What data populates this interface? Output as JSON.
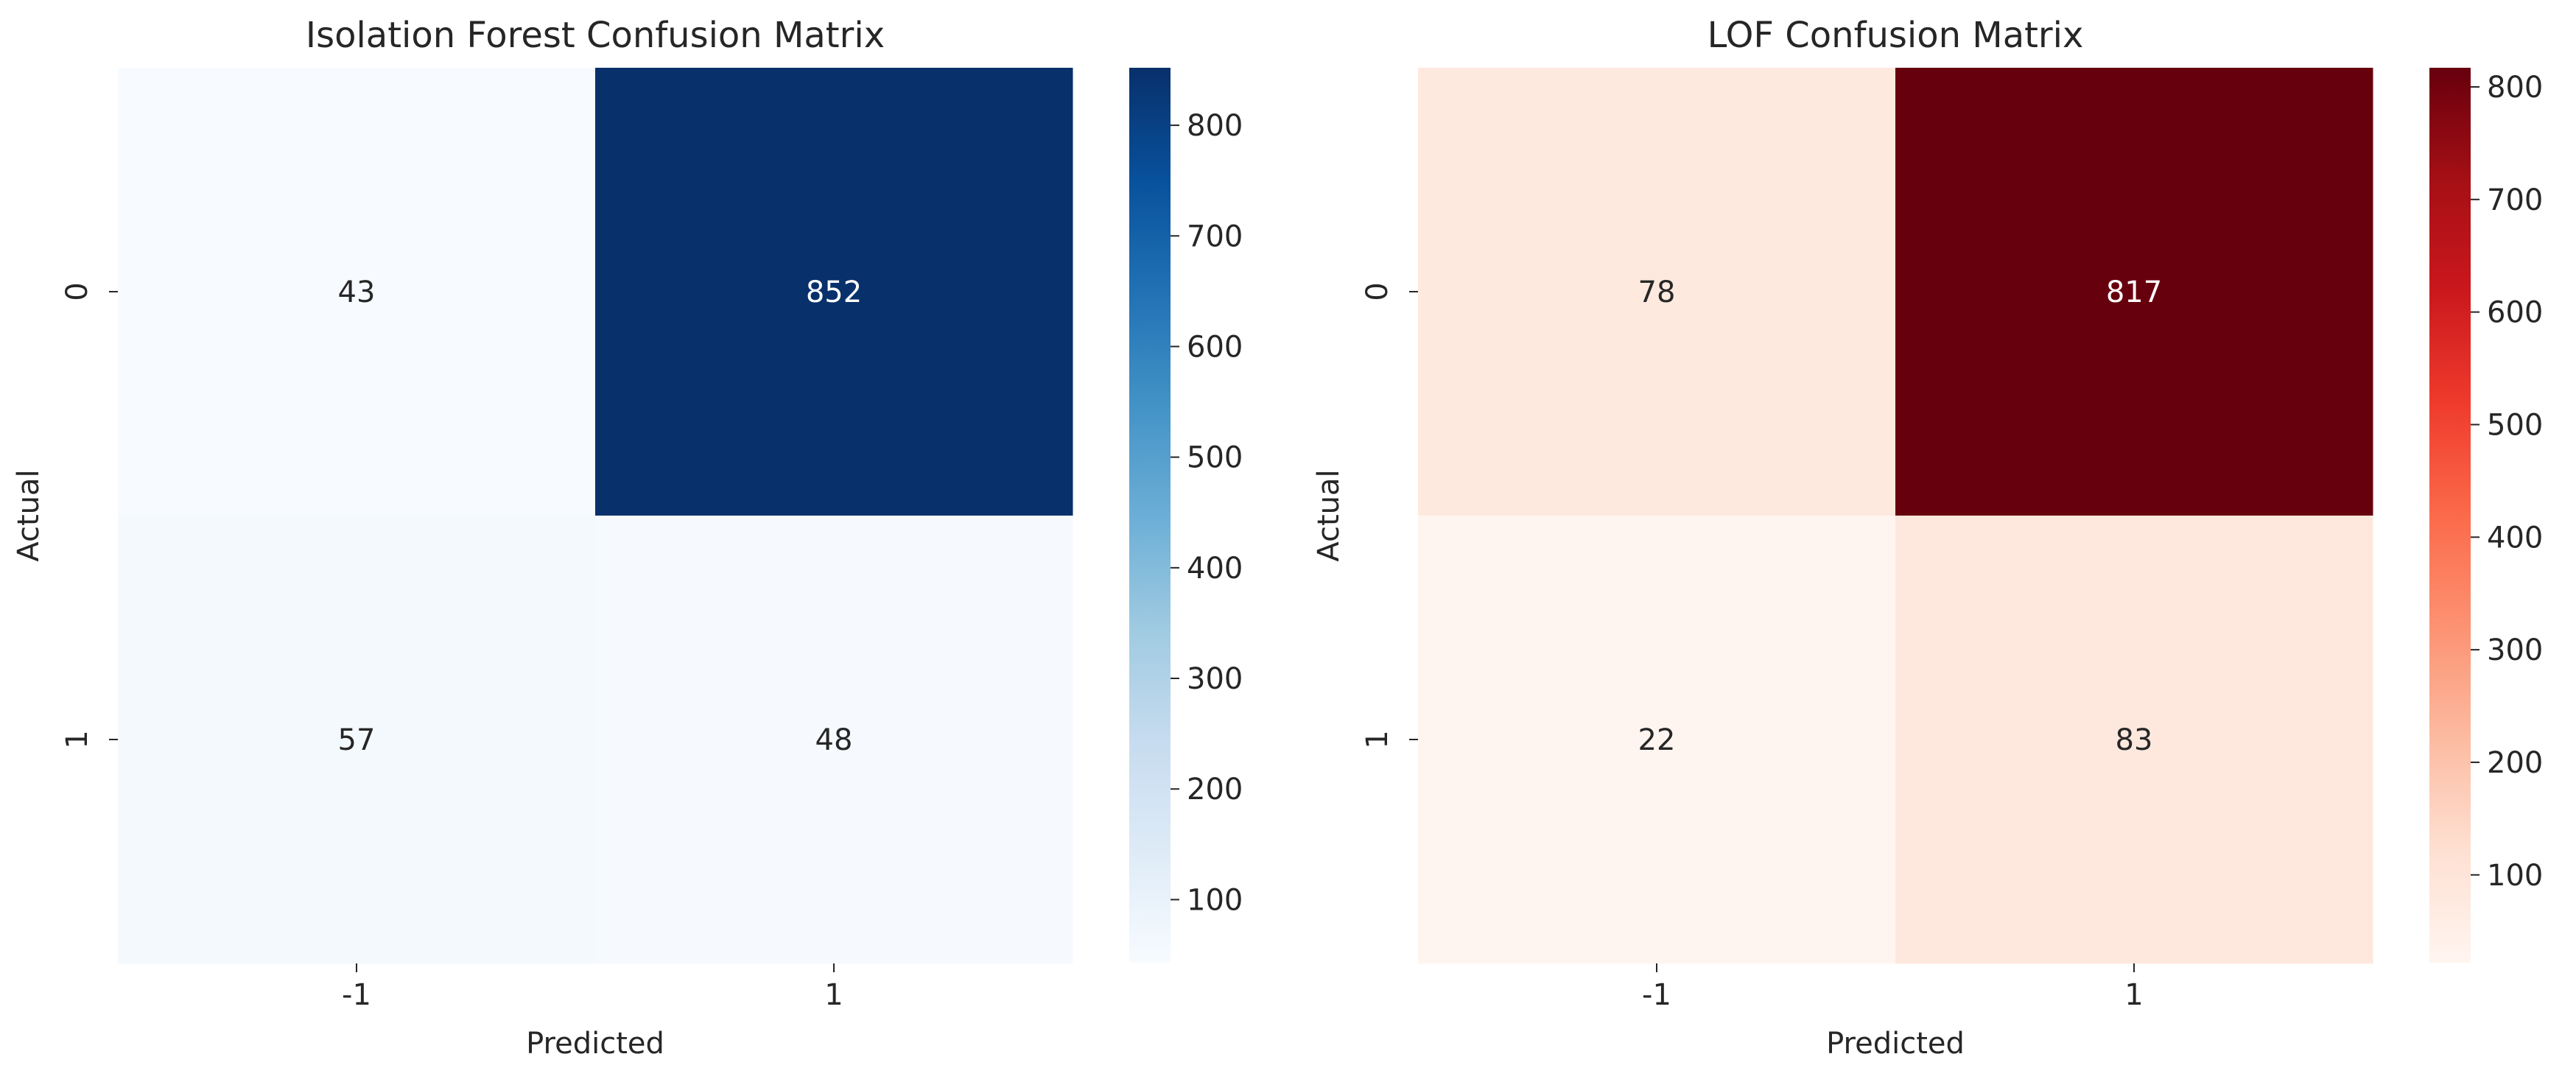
{
  "chart_data": [
    {
      "type": "heatmap",
      "title": "Isolation Forest Confusion Matrix",
      "xlabel": "Predicted",
      "ylabel": "Actual",
      "x_categories": [
        "-1",
        "1"
      ],
      "y_categories": [
        "0",
        "1"
      ],
      "values": [
        [
          43,
          852
        ],
        [
          57,
          48
        ]
      ],
      "colormap": "Blues",
      "color_low": "#f7fbff",
      "color_high": "#08306b",
      "vmin": 43,
      "vmax": 852,
      "colorbar_ticks": [
        "100",
        "200",
        "300",
        "400",
        "500",
        "600",
        "700",
        "800"
      ],
      "colorbar_tick_values": [
        100,
        200,
        300,
        400,
        500,
        600,
        700,
        800
      ]
    },
    {
      "type": "heatmap",
      "title": "LOF Confusion Matrix",
      "xlabel": "Predicted",
      "ylabel": "Actual",
      "x_categories": [
        "-1",
        "1"
      ],
      "y_categories": [
        "0",
        "1"
      ],
      "values": [
        [
          78,
          817
        ],
        [
          22,
          83
        ]
      ],
      "colormap": "Reds",
      "color_low": "#fff5f0",
      "color_high": "#67000d",
      "vmin": 22,
      "vmax": 817,
      "colorbar_ticks": [
        "100",
        "200",
        "300",
        "400",
        "500",
        "600",
        "700",
        "800"
      ],
      "colorbar_tick_values": [
        100,
        200,
        300,
        400,
        500,
        600,
        700,
        800
      ]
    }
  ]
}
